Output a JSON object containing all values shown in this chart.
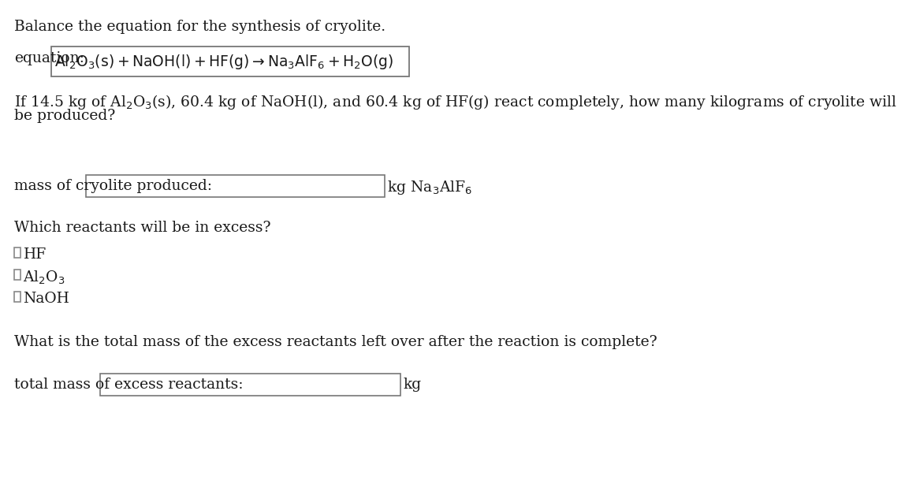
{
  "title": "Balance the equation for the synthesis of cryolite.",
  "equation_label": "equation:",
  "eq_math": "$\\mathrm{Al_2O_3(s) + NaOH(l) + HF(g) \\rightarrow Na_3AlF_6 + H_2O(g)}$",
  "para1": "If 14.5 kg of Al$_2$O$_3$(s), 60.4 kg of NaOH(l), and 60.4 kg of HF(g) react completely, how many kilograms of cryolite will",
  "para2": "be produced?",
  "mass_label": "mass of cryolite produced:",
  "mass_unit": "kg Na$_3$AlF$_6$",
  "which_label": "Which reactants will be in excess?",
  "cb_labels": [
    "HF",
    "Al$_2$O$_3$",
    "NaOH"
  ],
  "total_q": "What is the total mass of the excess reactants left over after the reaction is complete?",
  "total_label": "total mass of excess reactants:",
  "total_unit": "kg",
  "bg_color": "#ffffff",
  "text_color": "#1a1a1a",
  "box_edge_color": "#888888",
  "font_size": 13.5,
  "font_family": "DejaVu Serif"
}
